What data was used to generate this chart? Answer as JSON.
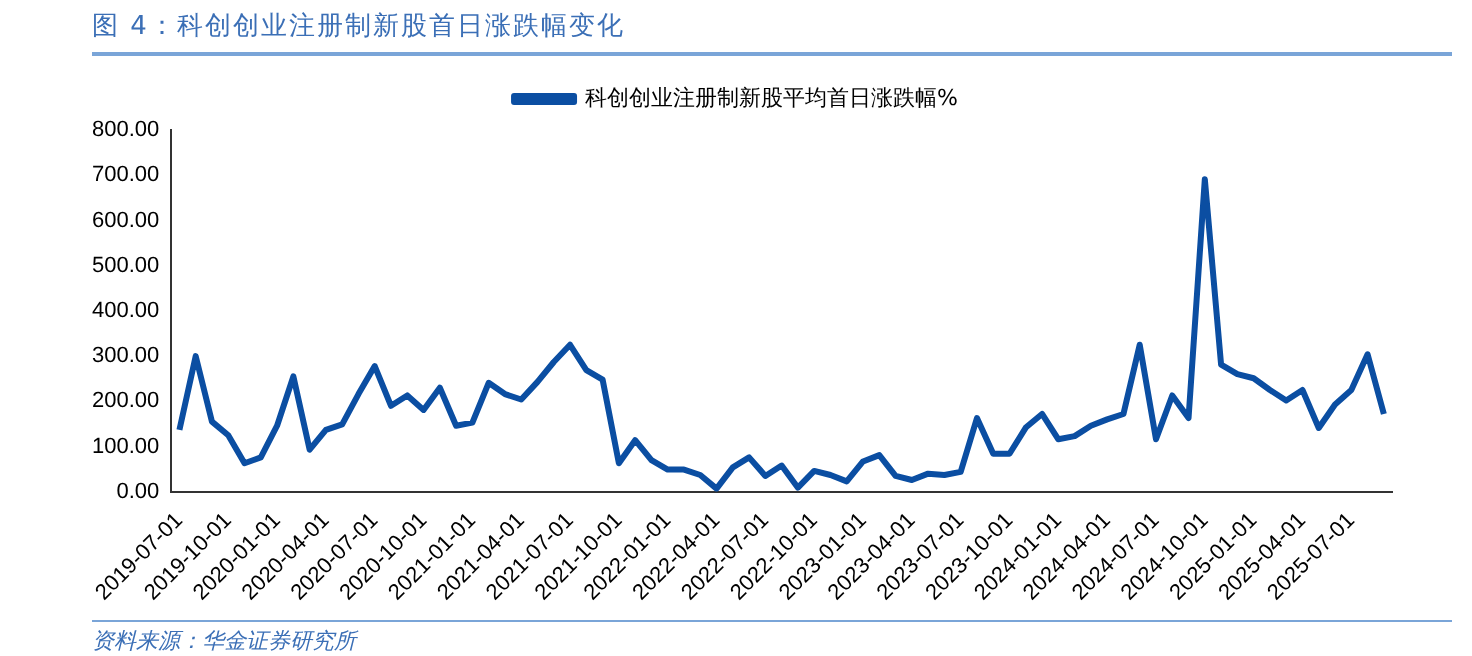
{
  "chart_data": {
    "type": "line",
    "title": "图 4：科创创业注册制新股首日涨跌幅变化",
    "annotations": [
      "资料来源：华金证券研究所"
    ],
    "categories": [
      "2019-07-01",
      null,
      null,
      "2019-10-01",
      null,
      null,
      "2020-01-01",
      null,
      null,
      "2020-04-01",
      null,
      null,
      "2020-07-01",
      null,
      null,
      "2020-10-01",
      null,
      null,
      "2021-01-01",
      null,
      null,
      "2021-04-01",
      null,
      null,
      "2021-07-01",
      null,
      null,
      "2021-10-01",
      null,
      null,
      "2022-01-01",
      null,
      null,
      "2022-04-01",
      null,
      null,
      "2022-07-01",
      null,
      null,
      "2022-10-01",
      null,
      null,
      "2023-01-01",
      null,
      null,
      "2023-04-01",
      null,
      null,
      "2023-07-01",
      null,
      null,
      "2023-10-01",
      null,
      null,
      "2024-01-01",
      null,
      null,
      "2024-04-01",
      null,
      null,
      "2024-07-01",
      null,
      null,
      "2024-10-01",
      null,
      null,
      "2025-01-01",
      null,
      null,
      "2025-04-01",
      null,
      null,
      "2025-07-01",
      null,
      null
    ],
    "series": [
      {
        "name": "科创创业注册制新股平均首日涨跌幅%",
        "color": "#0b4ea2",
        "values": [
          137,
          300,
          155,
          125,
          63,
          76,
          146,
          255,
          93,
          137,
          149,
          216,
          278,
          190,
          213,
          181,
          230,
          146,
          153,
          241,
          216,
          204,
          243,
          287,
          325,
          269,
          248,
          63,
          114,
          70,
          49,
          49,
          37,
          7,
          54,
          76,
          35,
          58,
          9,
          46,
          37,
          23,
          67,
          81,
          35,
          26,
          40,
          37,
          44,
          163,
          84,
          84,
          142,
          172,
          116,
          123,
          146,
          160,
          172,
          325,
          116,
          213,
          163,
          691,
          281,
          260,
          251,
          225,
          202,
          225,
          141,
          193,
          225,
          304,
          172
        ]
      }
    ],
    "ylim": [
      0,
      800
    ],
    "yticks": [
      {
        "value": 0,
        "label": "0.00"
      },
      {
        "value": 100,
        "label": "100.00"
      },
      {
        "value": 200,
        "label": "200.00"
      },
      {
        "value": 300,
        "label": "300.00"
      },
      {
        "value": 400,
        "label": "400.00"
      },
      {
        "value": 500,
        "label": "500.00"
      },
      {
        "value": 600,
        "label": "600.00"
      },
      {
        "value": 700,
        "label": "700.00"
      },
      {
        "value": 800,
        "label": "800.00"
      }
    ],
    "grid": false,
    "legend": "top",
    "marker": "none",
    "line_style": "solid"
  }
}
